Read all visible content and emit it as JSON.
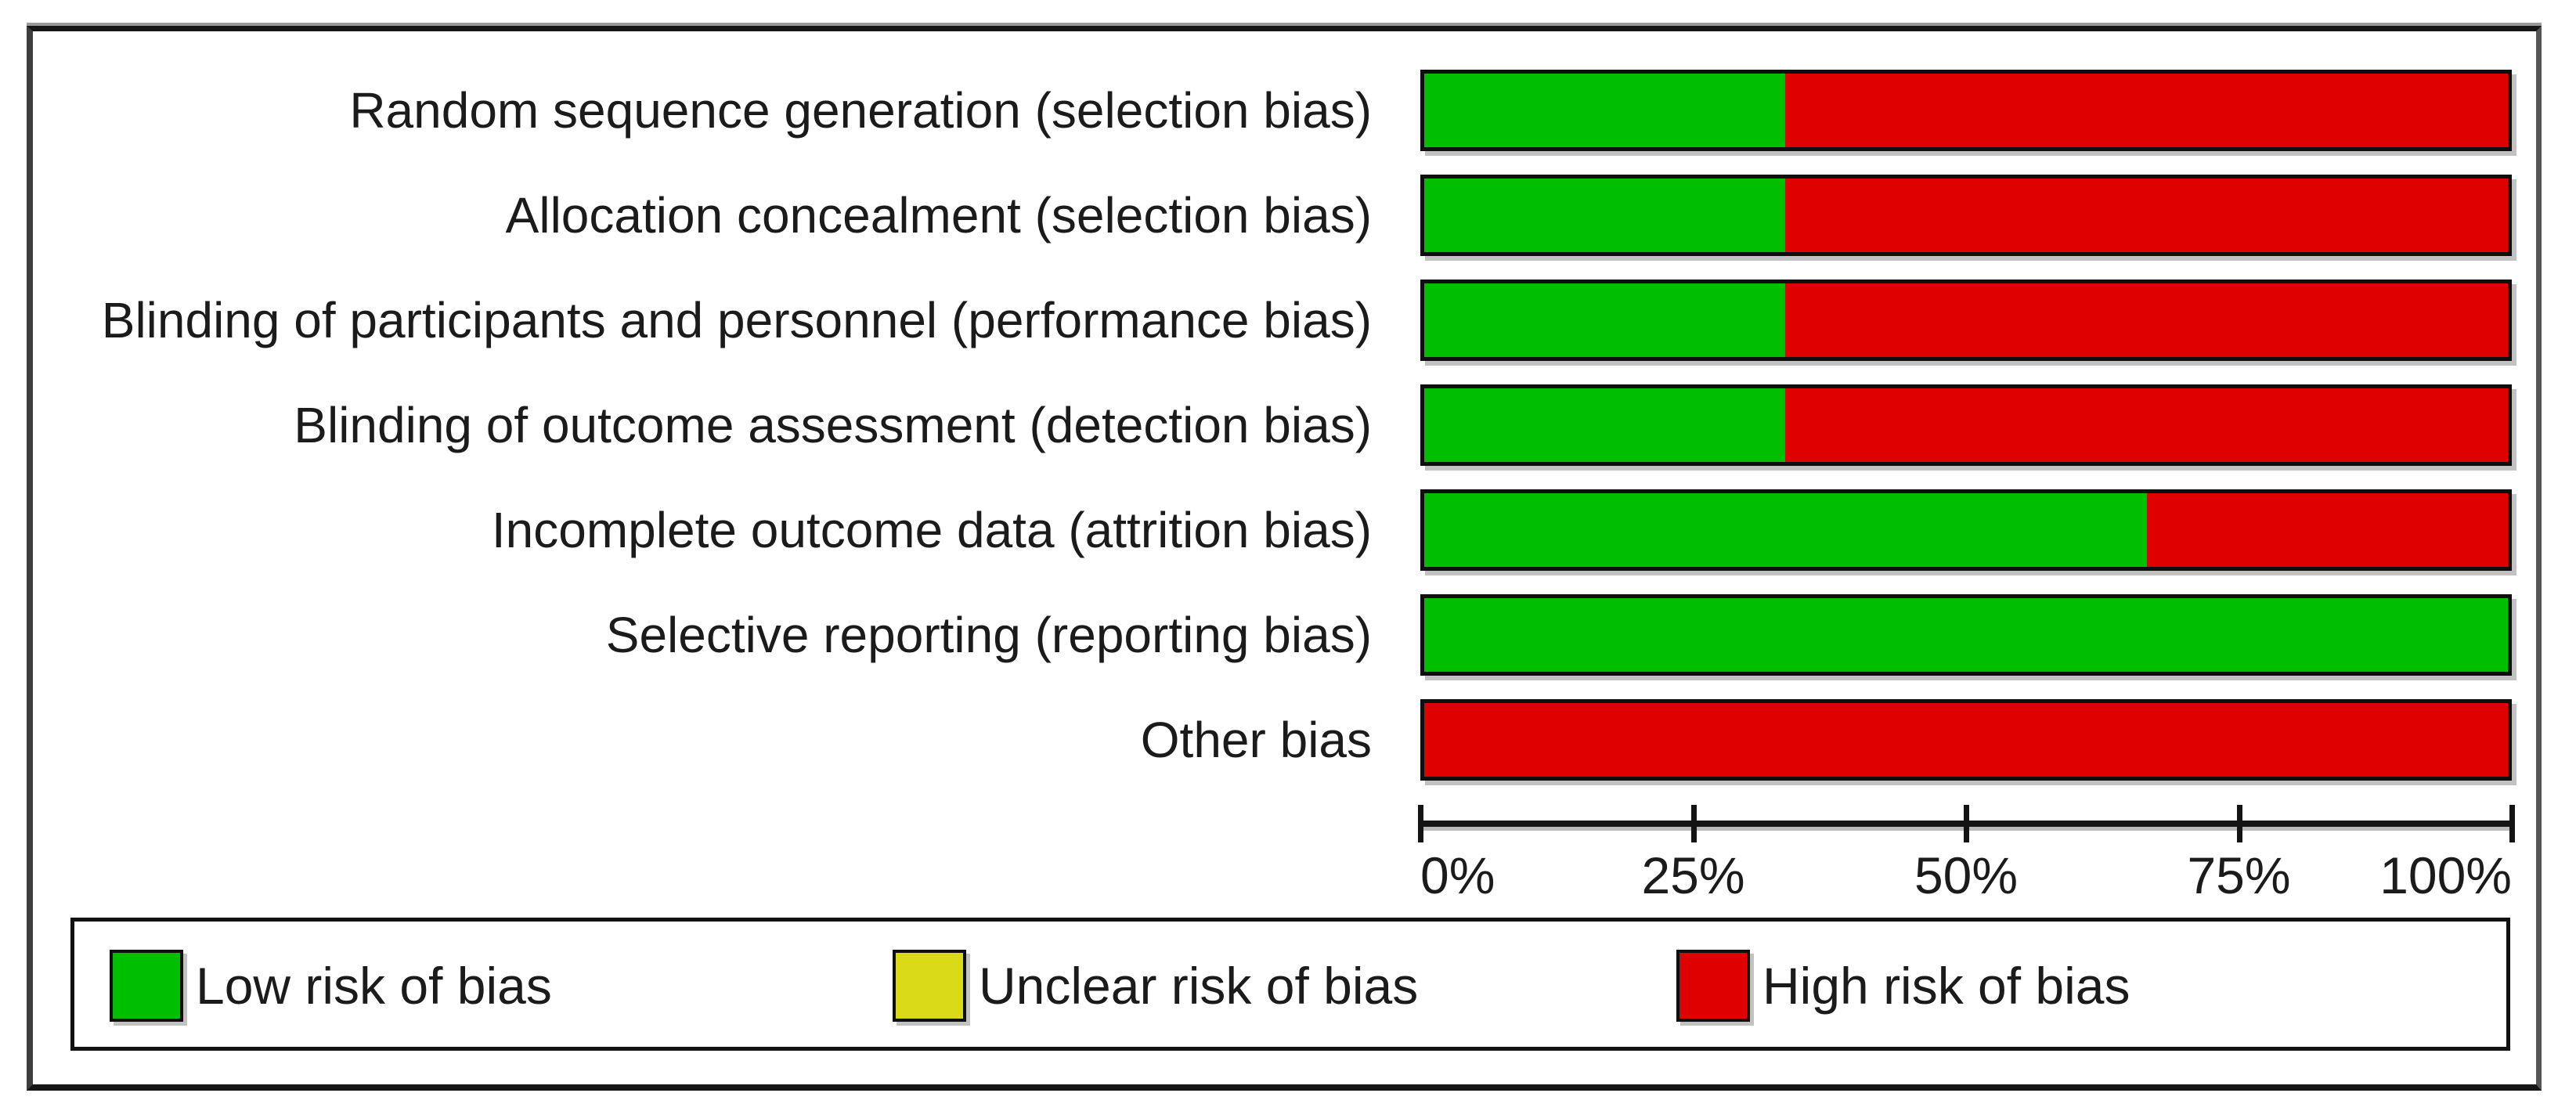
{
  "chart_data": {
    "type": "bar",
    "variant": "horizontal-stacked-100pct",
    "title": "",
    "xlabel": "",
    "ylabel": "",
    "grid": false,
    "categories": [
      "Random sequence generation (selection bias)",
      "Allocation concealment (selection bias)",
      "Blinding of participants and personnel (performance bias)",
      "Blinding of outcome assessment (detection bias)",
      "Incomplete outcome data (attrition bias)",
      "Selective reporting (reporting bias)",
      "Other bias"
    ],
    "series": [
      {
        "name": "Low risk of bias",
        "color": "#00be00",
        "values": [
          33.3,
          33.3,
          33.3,
          33.3,
          66.7,
          100,
          0
        ]
      },
      {
        "name": "Unclear risk of bias",
        "color": "#d9d916",
        "values": [
          0,
          0,
          0,
          0,
          0,
          0,
          0
        ]
      },
      {
        "name": "High risk of bias",
        "color": "#df0000",
        "values": [
          66.7,
          66.7,
          66.7,
          66.7,
          33.3,
          0,
          100
        ]
      }
    ],
    "x_axis": {
      "range": [
        0,
        100
      ],
      "tick_values": [
        0,
        25,
        50,
        75,
        100
      ],
      "tick_labels": [
        "0%",
        "25%",
        "50%",
        "75%",
        "100%"
      ]
    },
    "legend": {
      "position": "bottom",
      "items": [
        {
          "label": "Low risk of bias",
          "color": "#00be00"
        },
        {
          "label": "Unclear risk of bias",
          "color": "#d9d916"
        },
        {
          "label": "High risk of bias",
          "color": "#df0000"
        }
      ]
    }
  }
}
